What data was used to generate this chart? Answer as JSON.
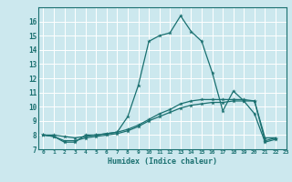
{
  "title": "",
  "xlabel": "Humidex (Indice chaleur)",
  "ylabel": "",
  "background_color": "#cce8ee",
  "grid_color": "#ffffff",
  "line_color": "#1a7070",
  "xlim": [
    -0.5,
    23
  ],
  "ylim": [
    7,
    17
  ],
  "xticks": [
    0,
    1,
    2,
    3,
    4,
    5,
    6,
    7,
    8,
    9,
    10,
    11,
    12,
    13,
    14,
    15,
    16,
    17,
    18,
    19,
    20,
    21,
    22,
    23
  ],
  "yticks": [
    8,
    9,
    10,
    11,
    12,
    13,
    14,
    15,
    16
  ],
  "ytick_labels": [
    "8",
    "9",
    "10",
    "11",
    "12",
    "13",
    "14",
    "15",
    "16"
  ],
  "series1_x": [
    0,
    1,
    2,
    3,
    4,
    5,
    6,
    7,
    8,
    9,
    10,
    11,
    12,
    13,
    14,
    15,
    16,
    17,
    18,
    19,
    20,
    21,
    22
  ],
  "series1_y": [
    8.0,
    7.9,
    7.5,
    7.5,
    8.0,
    8.0,
    8.1,
    8.2,
    9.3,
    11.5,
    14.6,
    15.0,
    15.2,
    16.4,
    15.3,
    14.6,
    12.4,
    9.7,
    11.1,
    10.4,
    9.5,
    7.5,
    7.7
  ],
  "series2_x": [
    0,
    1,
    2,
    3,
    4,
    5,
    6,
    7,
    8,
    9,
    10,
    11,
    12,
    13,
    14,
    15,
    16,
    17,
    18,
    19,
    20,
    21,
    22
  ],
  "series2_y": [
    8.0,
    7.9,
    7.6,
    7.6,
    7.8,
    7.9,
    8.0,
    8.1,
    8.3,
    8.6,
    9.0,
    9.3,
    9.6,
    9.9,
    10.1,
    10.2,
    10.3,
    10.3,
    10.4,
    10.4,
    10.4,
    7.6,
    7.8
  ],
  "series3_x": [
    0,
    1,
    2,
    3,
    4,
    5,
    6,
    7,
    8,
    9,
    10,
    11,
    12,
    13,
    14,
    15,
    16,
    17,
    18,
    19,
    20,
    21,
    22
  ],
  "series3_y": [
    8.0,
    8.0,
    7.9,
    7.8,
    7.9,
    8.0,
    8.1,
    8.2,
    8.4,
    8.7,
    9.1,
    9.5,
    9.8,
    10.2,
    10.4,
    10.5,
    10.5,
    10.5,
    10.5,
    10.5,
    10.4,
    7.8,
    7.8
  ]
}
